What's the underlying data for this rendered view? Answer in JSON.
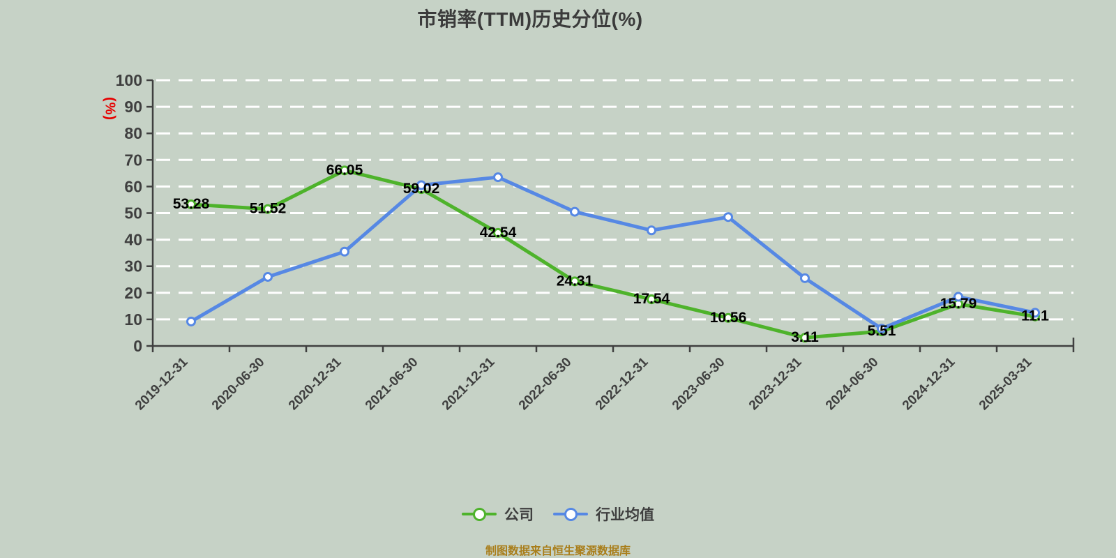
{
  "title": "市销率(TTM)历史分位(%)",
  "y_axis_unit_label": "(%)",
  "footer_note": "制图数据来自恒生聚源数据库",
  "legend": {
    "items": [
      {
        "label": "公司",
        "color": "#4eb32b"
      },
      {
        "label": "行业均值",
        "color": "#5688e4"
      }
    ]
  },
  "colors": {
    "company_line": "#4eb32b",
    "industry_line": "#5688e4",
    "marker_fill": "#ffffff",
    "axis": "#3f3f3f",
    "grid": "#ffffff",
    "title_text": "#3b3b3b",
    "tick_text": "#3f3f3f",
    "data_label_text": "#000000",
    "unit_label": "#e60000",
    "footer_text": "#a97e1b",
    "background": "#c6d2c6"
  },
  "chart_data": {
    "type": "line",
    "title": "市销率(TTM)历史分位(%)",
    "ylabel": "(%)",
    "ylim": [
      0,
      100
    ],
    "y_tick_step": 10,
    "grid": "horizontal dashed",
    "legend_position": "bottom center",
    "categories": [
      "2019-12-31",
      "2020-06-30",
      "2020-12-31",
      "2021-06-30",
      "2021-12-31",
      "2022-06-30",
      "2022-12-31",
      "2023-06-30",
      "2023-12-31",
      "2024-06-30",
      "2024-12-31",
      "2025-03-31"
    ],
    "series": [
      {
        "name": "公司",
        "color": "#4eb32b",
        "values": [
          53.28,
          51.52,
          66.05,
          59.02,
          42.54,
          24.31,
          17.54,
          10.56,
          3.11,
          5.51,
          15.79,
          11.1
        ],
        "point_labels": [
          "53.28",
          "51.52",
          "66.05",
          "59.02",
          "42.54",
          "24.31",
          "17.54",
          "10.56",
          "3.11",
          "5.51",
          "15.79",
          "11.1"
        ],
        "show_point_labels": true
      },
      {
        "name": "行业均值",
        "color": "#5688e4",
        "values": [
          9.2,
          26,
          35.5,
          60.5,
          63.5,
          50.5,
          43.5,
          48.5,
          25.5,
          6.5,
          18.5,
          12.5
        ],
        "show_point_labels": false
      }
    ]
  }
}
